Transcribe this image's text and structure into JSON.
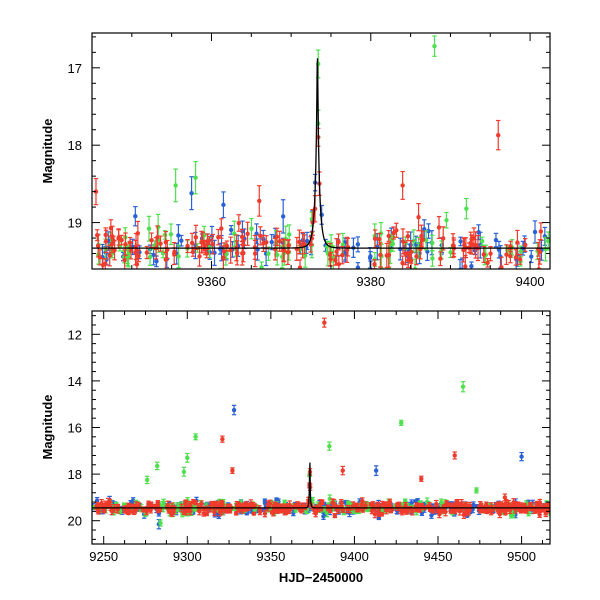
{
  "colors": {
    "blue": "#2a62d6",
    "green": "#4ee04e",
    "red": "#ef3b2c",
    "model": "#000000"
  },
  "chart_data": [
    {
      "type": "scatter",
      "title": "",
      "xlabel": "",
      "ylabel": "Magnitude",
      "xlim": [
        9345,
        9402.5
      ],
      "ylim": [
        19.6,
        16.55
      ],
      "y_inverted": true,
      "xticks": [
        9360,
        9380,
        9400
      ],
      "yticks": [
        17,
        18,
        19
      ],
      "baseline": 19.33,
      "model": {
        "name": "model",
        "t0": 9373.3,
        "peak_mag": 16.8,
        "baseline": 19.33,
        "tE": 0.55,
        "u0": 0.085
      },
      "series": [
        {
          "name": "blue",
          "color": "blue",
          "count": 90,
          "seed": 11,
          "outliers": [
            {
              "x": 9357.5,
              "y": 18.62
            },
            {
              "x": 9361.5,
              "y": 18.77
            },
            {
              "x": 9369.0,
              "y": 18.92
            }
          ]
        },
        {
          "name": "green",
          "color": "green",
          "count": 80,
          "seed": 23,
          "outliers": [
            {
              "x": 9388.0,
              "y": 16.72
            },
            {
              "x": 9355.5,
              "y": 18.52
            },
            {
              "x": 9358.0,
              "y": 18.42
            },
            {
              "x": 9373.4,
              "y": 16.95
            },
            {
              "x": 9373.4,
              "y": 17.72
            },
            {
              "x": 9392.0,
              "y": 18.82
            },
            {
              "x": 9389.5,
              "y": 18.97
            }
          ]
        },
        {
          "name": "red",
          "color": "red",
          "count": 150,
          "seed": 37,
          "outliers": [
            {
              "x": 9345.5,
              "y": 18.6
            },
            {
              "x": 9396.0,
              "y": 17.87
            },
            {
              "x": 9384.0,
              "y": 18.52
            },
            {
              "x": 9366.0,
              "y": 18.72
            },
            {
              "x": 9386.0,
              "y": 18.93
            }
          ]
        }
      ]
    },
    {
      "type": "scatter",
      "title": "",
      "xlabel": "HJD−2450000",
      "ylabel": "Magnitude",
      "xlim": [
        9243,
        9517
      ],
      "ylim": [
        21.0,
        11.0
      ],
      "y_inverted": true,
      "xticks": [
        9250,
        9300,
        9350,
        9400,
        9450,
        9500
      ],
      "yticks": [
        12,
        14,
        16,
        18,
        20
      ],
      "baseline": 19.45,
      "model": {
        "name": "model",
        "t0": 9373.3,
        "peak_mag": 16.8,
        "baseline": 19.45,
        "tE": 0.55,
        "u0": 0.085
      },
      "series": [
        {
          "name": "blue",
          "color": "blue",
          "count": 260,
          "seed": 101,
          "outliers": [
            {
              "x": 9328.0,
              "y": 15.25
            },
            {
              "x": 9500.0,
              "y": 17.25
            },
            {
              "x": 9413.0,
              "y": 17.85
            },
            {
              "x": 9283.0,
              "y": 20.15
            }
          ]
        },
        {
          "name": "green",
          "color": "green",
          "count": 220,
          "seed": 131,
          "outliers": [
            {
              "x": 9465.0,
              "y": 14.25
            },
            {
              "x": 9305.0,
              "y": 16.4
            },
            {
              "x": 9300.0,
              "y": 17.3
            },
            {
              "x": 9428.0,
              "y": 15.8
            },
            {
              "x": 9385.0,
              "y": 16.8
            },
            {
              "x": 9282.0,
              "y": 17.65
            },
            {
              "x": 9276.0,
              "y": 18.25
            },
            {
              "x": 9298.0,
              "y": 17.9
            },
            {
              "x": 9473.0,
              "y": 18.7
            },
            {
              "x": 9284.0,
              "y": 20.1
            }
          ]
        },
        {
          "name": "red",
          "color": "red",
          "count": 380,
          "seed": 173,
          "outliers": [
            {
              "x": 9382.0,
              "y": 11.5
            },
            {
              "x": 9460.0,
              "y": 17.2
            },
            {
              "x": 9321.0,
              "y": 16.5
            },
            {
              "x": 9327.0,
              "y": 17.85
            },
            {
              "x": 9393.0,
              "y": 17.85
            },
            {
              "x": 9440.0,
              "y": 18.2
            },
            {
              "x": 9490.0,
              "y": 19.0
            }
          ]
        }
      ]
    }
  ]
}
